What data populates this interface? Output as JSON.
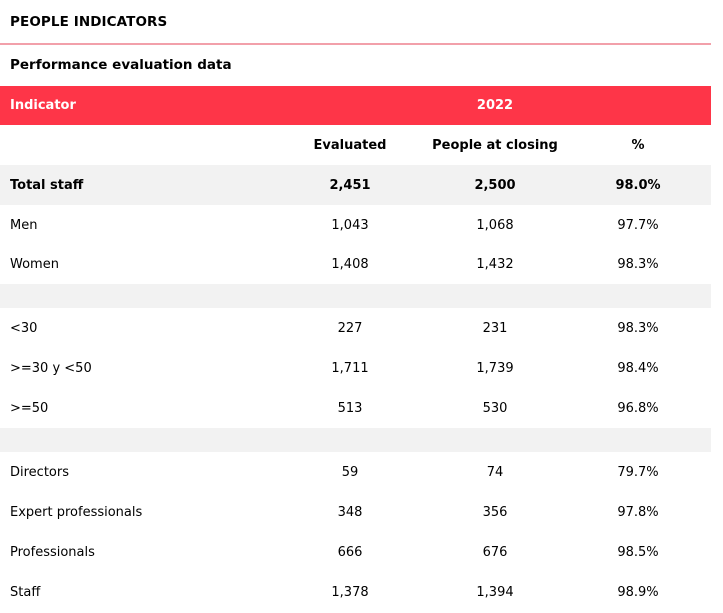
{
  "page": {
    "section_title": "PEOPLE INDICATORS",
    "subtitle": "Performance evaluation data"
  },
  "colors": {
    "header_bg": "#fe3548",
    "header_text": "#ffffff",
    "shaded_row": "#f2f2f2",
    "title_rule": "#f2a0aa"
  },
  "table": {
    "indicator_label": "Indicator",
    "year": "2022",
    "columns": {
      "evaluated": "Evaluated",
      "people_at_closing": "People at closing",
      "percent": "%"
    },
    "total": {
      "label": "Total staff",
      "evaluated": "2,451",
      "people": "2,500",
      "pct": "98.0%"
    },
    "gender": [
      {
        "label": "Men",
        "evaluated": "1,043",
        "people": "1,068",
        "pct": "97.7%"
      },
      {
        "label": "Women",
        "evaluated": "1,408",
        "people": "1,432",
        "pct": "98.3%"
      }
    ],
    "age": [
      {
        "label": "<30",
        "evaluated": "227",
        "people": "231",
        "pct": "98.3%"
      },
      {
        "label": ">=30 y <50",
        "evaluated": "1,711",
        "people": "1,739",
        "pct": "98.4%"
      },
      {
        "label": ">=50",
        "evaluated": "513",
        "people": "530",
        "pct": "96.8%"
      }
    ],
    "category": [
      {
        "label": "Directors",
        "evaluated": "59",
        "people": "74",
        "pct": "79.7%"
      },
      {
        "label": "Expert professionals",
        "evaluated": "348",
        "people": "356",
        "pct": "97.8%"
      },
      {
        "label": "Professionals",
        "evaluated": "666",
        "people": "676",
        "pct": "98.5%"
      },
      {
        "label": "Staff",
        "evaluated": "1,378",
        "people": "1,394",
        "pct": "98.9%"
      }
    ]
  }
}
